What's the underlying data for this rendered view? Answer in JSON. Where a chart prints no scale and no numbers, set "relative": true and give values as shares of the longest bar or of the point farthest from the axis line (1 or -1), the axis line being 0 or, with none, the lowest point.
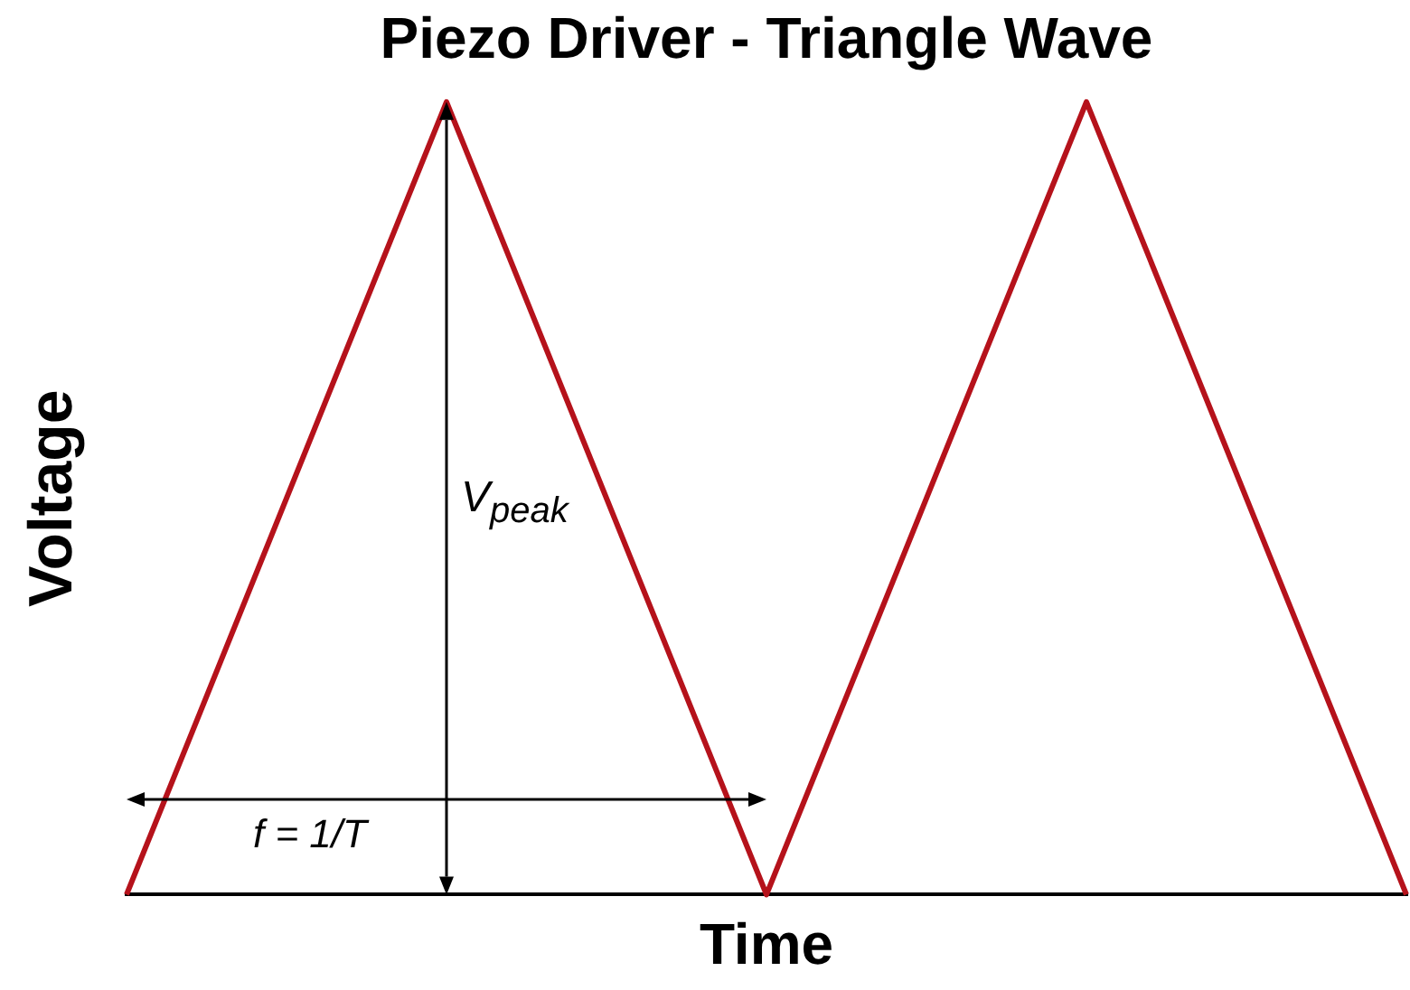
{
  "chart_data": {
    "type": "line",
    "title": "Piezo Driver - Triangle Wave",
    "xlabel": "Time",
    "ylabel": "Voltage",
    "relative": true,
    "categories": [
      null,
      null,
      null,
      null,
      null
    ],
    "series": [
      {
        "color": "#b5121b",
        "values": [
          0,
          1,
          0,
          1,
          0
        ]
      }
    ],
    "annotations": [
      "f = 1/T",
      "V$_{peak}$"
    ]
  }
}
